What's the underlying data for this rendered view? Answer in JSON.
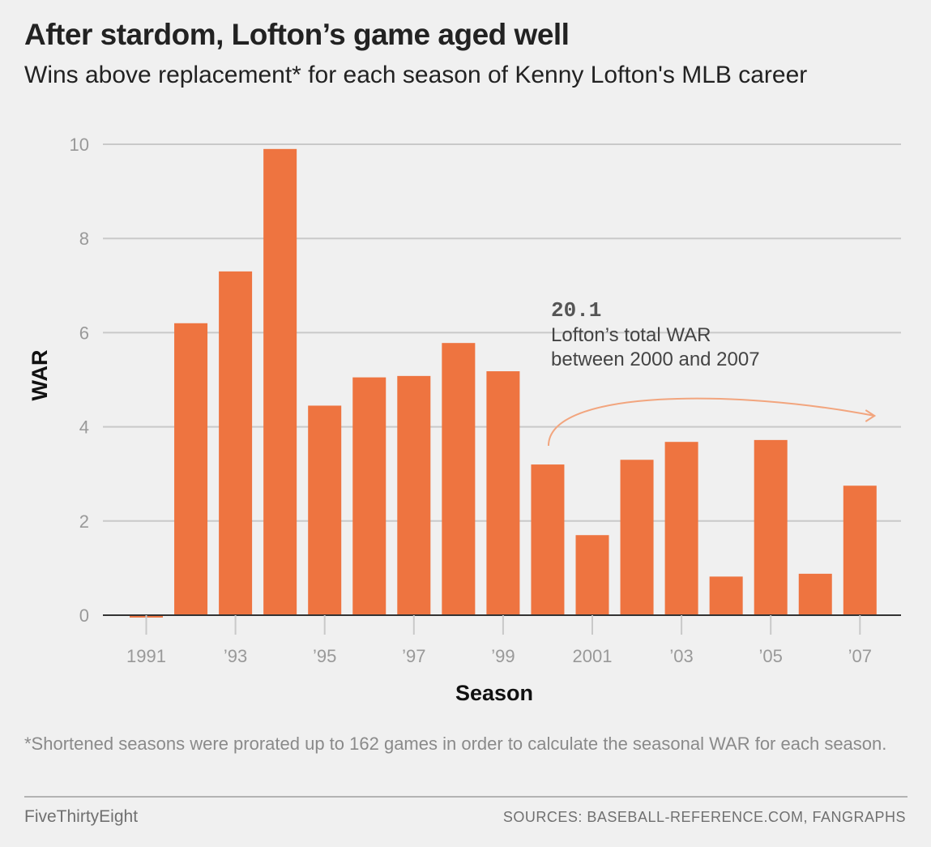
{
  "header": {
    "title": "After stardom, Lofton’s game aged well",
    "subtitle": "Wins above replacement* for each season of Kenny Lofton's MLB career"
  },
  "chart_data": {
    "type": "bar",
    "categories": [
      1991,
      1992,
      1993,
      1994,
      1995,
      1996,
      1997,
      1998,
      1999,
      2000,
      2001,
      2002,
      2003,
      2004,
      2005,
      2006,
      2007
    ],
    "values": [
      -0.05,
      6.2,
      7.3,
      9.9,
      4.45,
      5.05,
      5.08,
      5.78,
      5.18,
      3.2,
      1.7,
      3.3,
      3.68,
      0.82,
      3.72,
      0.88,
      2.75
    ],
    "x_tick_labels": [
      {
        "x": 1991,
        "label": "1991"
      },
      {
        "x": 1993,
        "label": "’93"
      },
      {
        "x": 1995,
        "label": "’95"
      },
      {
        "x": 1997,
        "label": "’97"
      },
      {
        "x": 1999,
        "label": "’99"
      },
      {
        "x": 2001,
        "label": "2001"
      },
      {
        "x": 2003,
        "label": "’03"
      },
      {
        "x": 2005,
        "label": "’05"
      },
      {
        "x": 2007,
        "label": "’07"
      }
    ],
    "y_ticks": [
      0,
      2,
      4,
      6,
      8,
      10
    ],
    "ylim": [
      0,
      10
    ],
    "xlabel": "Season",
    "ylabel": "WAR",
    "grid": true,
    "bar_color": "#ee7440",
    "annotation": {
      "value": "20.1",
      "line1": "Lofton’s total WAR",
      "line2": "between 2000 and 2007",
      "arrow_color": "#f2a57e"
    }
  },
  "footer": {
    "footnote": "*Shortened seasons were prorated up to 162 games in order to calculate the seasonal WAR for each season.",
    "brand": "FiveThirtyEight",
    "sources": "SOURCES: BASEBALL-REFERENCE.COM, FANGRAPHS"
  }
}
